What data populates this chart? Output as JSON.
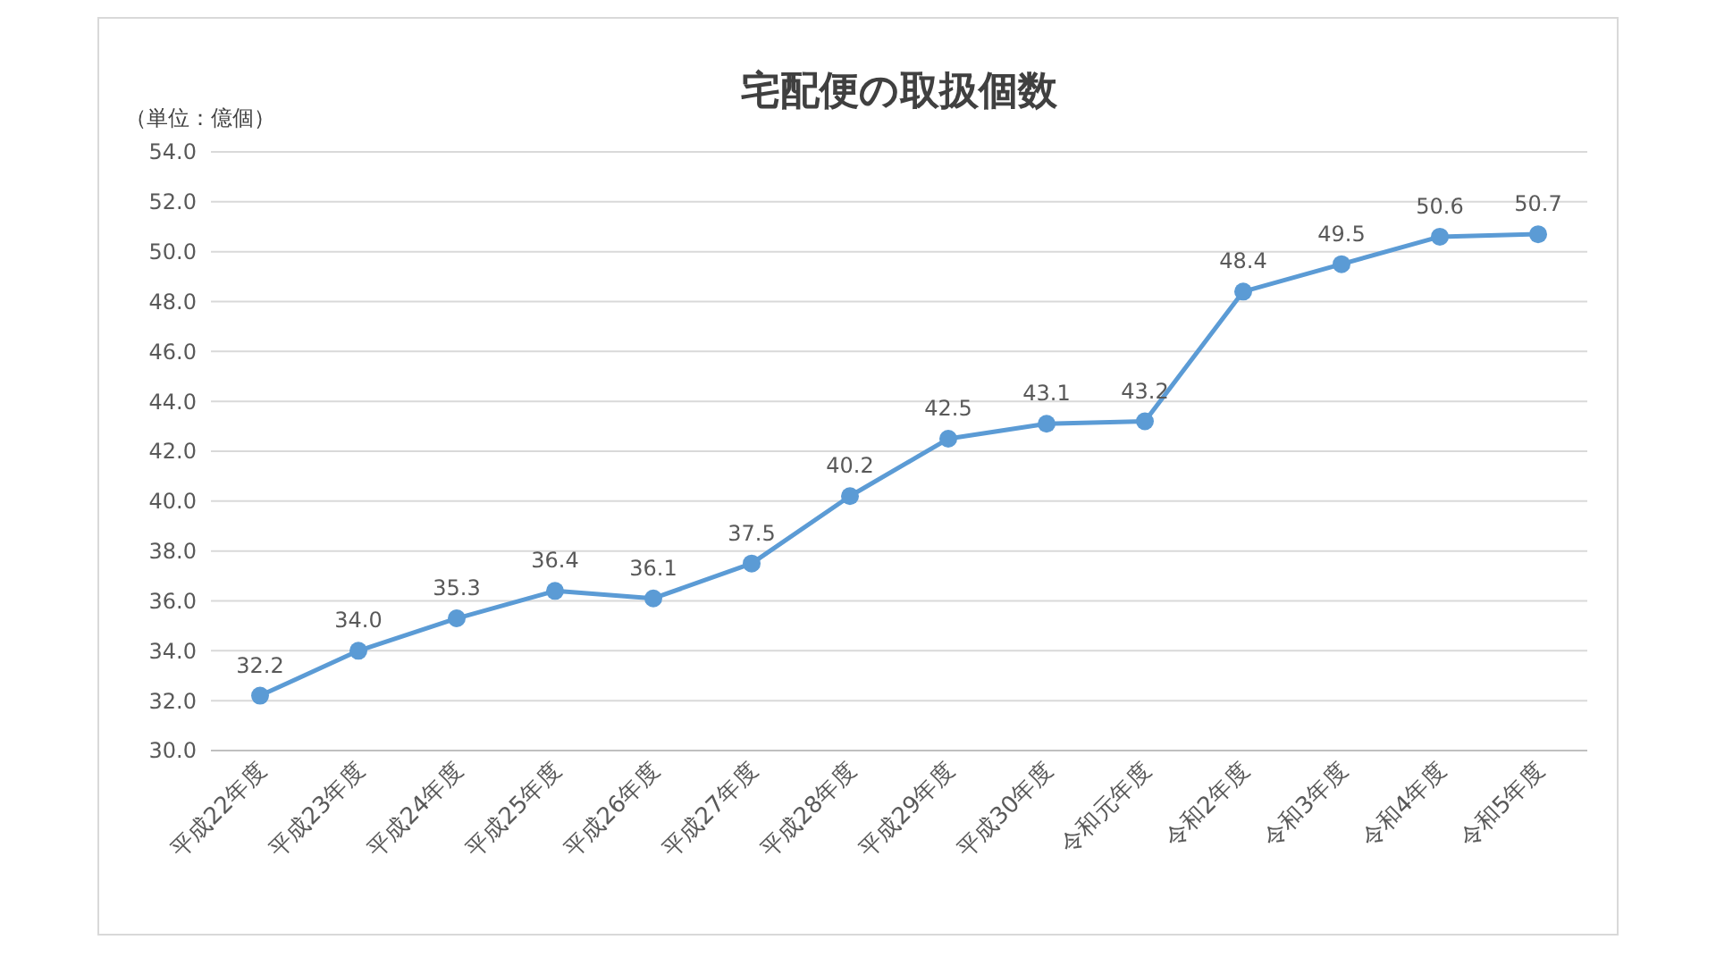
{
  "chart_data": {
    "type": "line",
    "title": "宅配便の取扱個数",
    "annotations": [
      "（単位：億個）"
    ],
    "categories": [
      "平成22年度",
      "平成23年度",
      "平成24年度",
      "平成25年度",
      "平成26年度",
      "平成27年度",
      "平成28年度",
      "平成29年度",
      "平成30年度",
      "令和元年度",
      "令和2年度",
      "令和3年度",
      "令和4年度",
      "令和5年度"
    ],
    "series": [
      {
        "color": "#5b9bd5",
        "values": [
          32.2,
          34.0,
          35.3,
          36.4,
          36.1,
          37.5,
          40.2,
          42.5,
          43.1,
          43.2,
          48.4,
          49.5,
          50.6,
          50.7
        ],
        "value_labels": [
          "32.2",
          "34.0",
          "35.3",
          "36.4",
          "36.1",
          "37.5",
          "40.2",
          "42.5",
          "43.1",
          "43.2",
          "48.4",
          "49.5",
          "50.6",
          "50.7"
        ]
      }
    ],
    "ylim": [
      30,
      54
    ],
    "yticks": [
      {
        "value": 30,
        "label": "30.0"
      },
      {
        "value": 32,
        "label": "32.0"
      },
      {
        "value": 34,
        "label": "34.0"
      },
      {
        "value": 36,
        "label": "36.0"
      },
      {
        "value": 38,
        "label": "38.0"
      },
      {
        "value": 40,
        "label": "40.0"
      },
      {
        "value": 42,
        "label": "42.0"
      },
      {
        "value": 44,
        "label": "44.0"
      },
      {
        "value": 46,
        "label": "46.0"
      },
      {
        "value": 48,
        "label": "48.0"
      },
      {
        "value": 50,
        "label": "50.0"
      },
      {
        "value": 52,
        "label": "52.0"
      },
      {
        "value": 54,
        "label": "54.0"
      }
    ],
    "grid": "y",
    "marker": "circle",
    "line_style": "solid"
  }
}
